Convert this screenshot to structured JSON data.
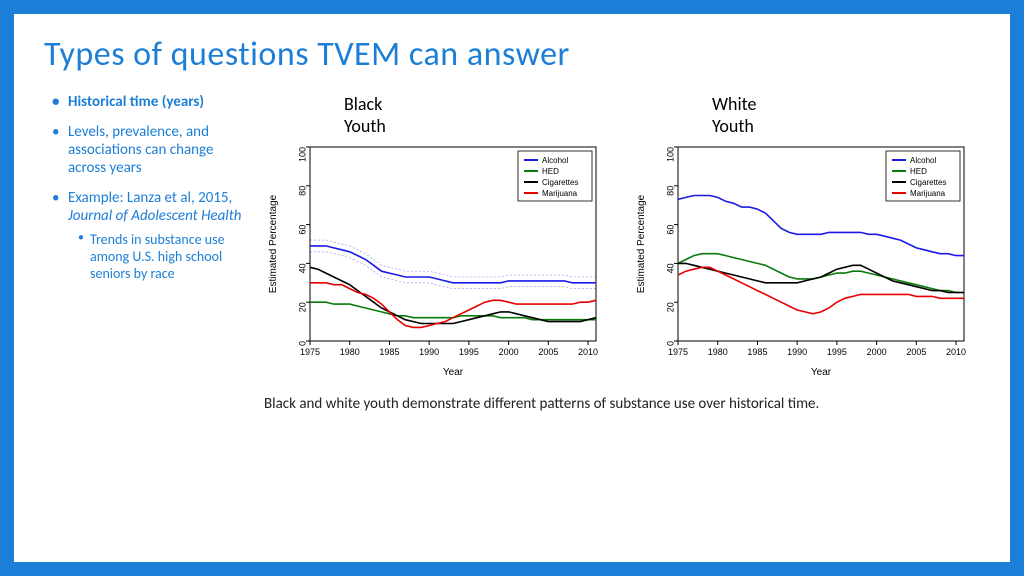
{
  "title": "Types of questions TVEM can answer",
  "bullets": [
    {
      "text": "Historical time (years)",
      "bold": true
    },
    {
      "text": "Levels, prevalence, and associations can change across years",
      "bold": false
    },
    {
      "text": "Example: Lanza et al, 2015, ",
      "italic_suffix": "Journal of Adolescent Health",
      "bold": false,
      "sub": [
        "Trends in substance use among U.S. high school seniors by race"
      ]
    }
  ],
  "caption": "Black and white youth demonstrate different patterns of substance use over historical time.",
  "chart_shared": {
    "type": "line",
    "xlabel": "Year",
    "ylabel": "Estimated Percentage",
    "xlim": [
      1975,
      2011
    ],
    "ylim": [
      0,
      100
    ],
    "xticks": [
      1975,
      1980,
      1985,
      1990,
      1995,
      2000,
      2005,
      2010
    ],
    "yticks": [
      0,
      20,
      40,
      60,
      80,
      100
    ],
    "legend_items": [
      "Alcohol",
      "HED",
      "Cigarettes",
      "Marijuana"
    ],
    "colors": {
      "Alcohol": "#1a1ae6",
      "HED": "#0a7a0a",
      "Cigarettes": "#000000",
      "Marijuana": "#e60000"
    },
    "label_fontsize": 9,
    "title_fontsize": 18,
    "background_color": "#ffffff",
    "line_width": 1.6,
    "conf_band_shown_on": "chart1"
  },
  "chart1": {
    "title": "Black Youth",
    "series": {
      "Alcohol": [
        49,
        49,
        49,
        48,
        47,
        46,
        44,
        42,
        39,
        36,
        35,
        34,
        33,
        33,
        33,
        33,
        32,
        31,
        30,
        30,
        30,
        30,
        30,
        30,
        30,
        31,
        31,
        31,
        31,
        31,
        31,
        31,
        31,
        30,
        30,
        30,
        30
      ],
      "HED": [
        20,
        20,
        20,
        19,
        19,
        19,
        18,
        17,
        16,
        15,
        14,
        13,
        13,
        12,
        12,
        12,
        12,
        12,
        12,
        13,
        13,
        13,
        13,
        13,
        12,
        12,
        12,
        12,
        11,
        11,
        11,
        11,
        11,
        11,
        11,
        11,
        11
      ],
      "Cigarettes": [
        38,
        37,
        35,
        33,
        31,
        29,
        26,
        23,
        20,
        17,
        15,
        13,
        11,
        10,
        9,
        9,
        9,
        9,
        9,
        10,
        11,
        12,
        13,
        14,
        15,
        15,
        14,
        13,
        12,
        11,
        10,
        10,
        10,
        10,
        10,
        11,
        12
      ],
      "Marijuana": [
        30,
        30,
        30,
        29,
        29,
        27,
        25,
        24,
        22,
        19,
        15,
        11,
        8,
        7,
        7,
        8,
        9,
        10,
        12,
        14,
        16,
        18,
        20,
        21,
        21,
        20,
        19,
        19,
        19,
        19,
        19,
        19,
        19,
        19,
        20,
        20,
        21
      ]
    },
    "conf_upper": {
      "Alcohol": [
        52,
        52,
        52,
        51,
        50,
        49,
        47,
        45,
        42,
        39,
        38,
        37,
        36,
        36,
        36,
        36,
        35,
        34,
        33,
        33,
        33,
        33,
        33,
        33,
        33,
        34,
        34,
        34,
        34,
        34,
        34,
        34,
        34,
        33,
        33,
        33,
        33
      ]
    },
    "conf_lower": {
      "Alcohol": [
        46,
        46,
        46,
        45,
        44,
        43,
        41,
        39,
        36,
        33,
        32,
        31,
        30,
        30,
        30,
        30,
        29,
        28,
        27,
        27,
        27,
        27,
        27,
        27,
        27,
        28,
        28,
        28,
        28,
        28,
        28,
        28,
        28,
        27,
        27,
        27,
        27
      ]
    }
  },
  "chart2": {
    "title": "White Youth",
    "series": {
      "Alcohol": [
        73,
        74,
        75,
        75,
        75,
        74,
        72,
        71,
        69,
        69,
        68,
        66,
        62,
        58,
        56,
        55,
        55,
        55,
        55,
        56,
        56,
        56,
        56,
        56,
        55,
        55,
        54,
        53,
        52,
        50,
        48,
        47,
        46,
        45,
        45,
        44,
        44
      ],
      "HED": [
        40,
        42,
        44,
        45,
        45,
        45,
        44,
        43,
        42,
        41,
        40,
        39,
        37,
        35,
        33,
        32,
        32,
        32,
        33,
        34,
        35,
        35,
        36,
        36,
        35,
        34,
        33,
        32,
        31,
        30,
        29,
        28,
        27,
        26,
        26,
        25,
        25
      ],
      "Cigarettes": [
        40,
        40,
        39,
        38,
        37,
        36,
        35,
        34,
        33,
        32,
        31,
        30,
        30,
        30,
        30,
        30,
        31,
        32,
        33,
        35,
        37,
        38,
        39,
        39,
        37,
        35,
        33,
        31,
        30,
        29,
        28,
        27,
        26,
        26,
        25,
        25,
        25
      ],
      "Marijuana": [
        34,
        36,
        37,
        38,
        38,
        36,
        34,
        32,
        30,
        28,
        26,
        24,
        22,
        20,
        18,
        16,
        15,
        14,
        15,
        17,
        20,
        22,
        23,
        24,
        24,
        24,
        24,
        24,
        24,
        24,
        23,
        23,
        23,
        22,
        22,
        22,
        22
      ]
    }
  }
}
